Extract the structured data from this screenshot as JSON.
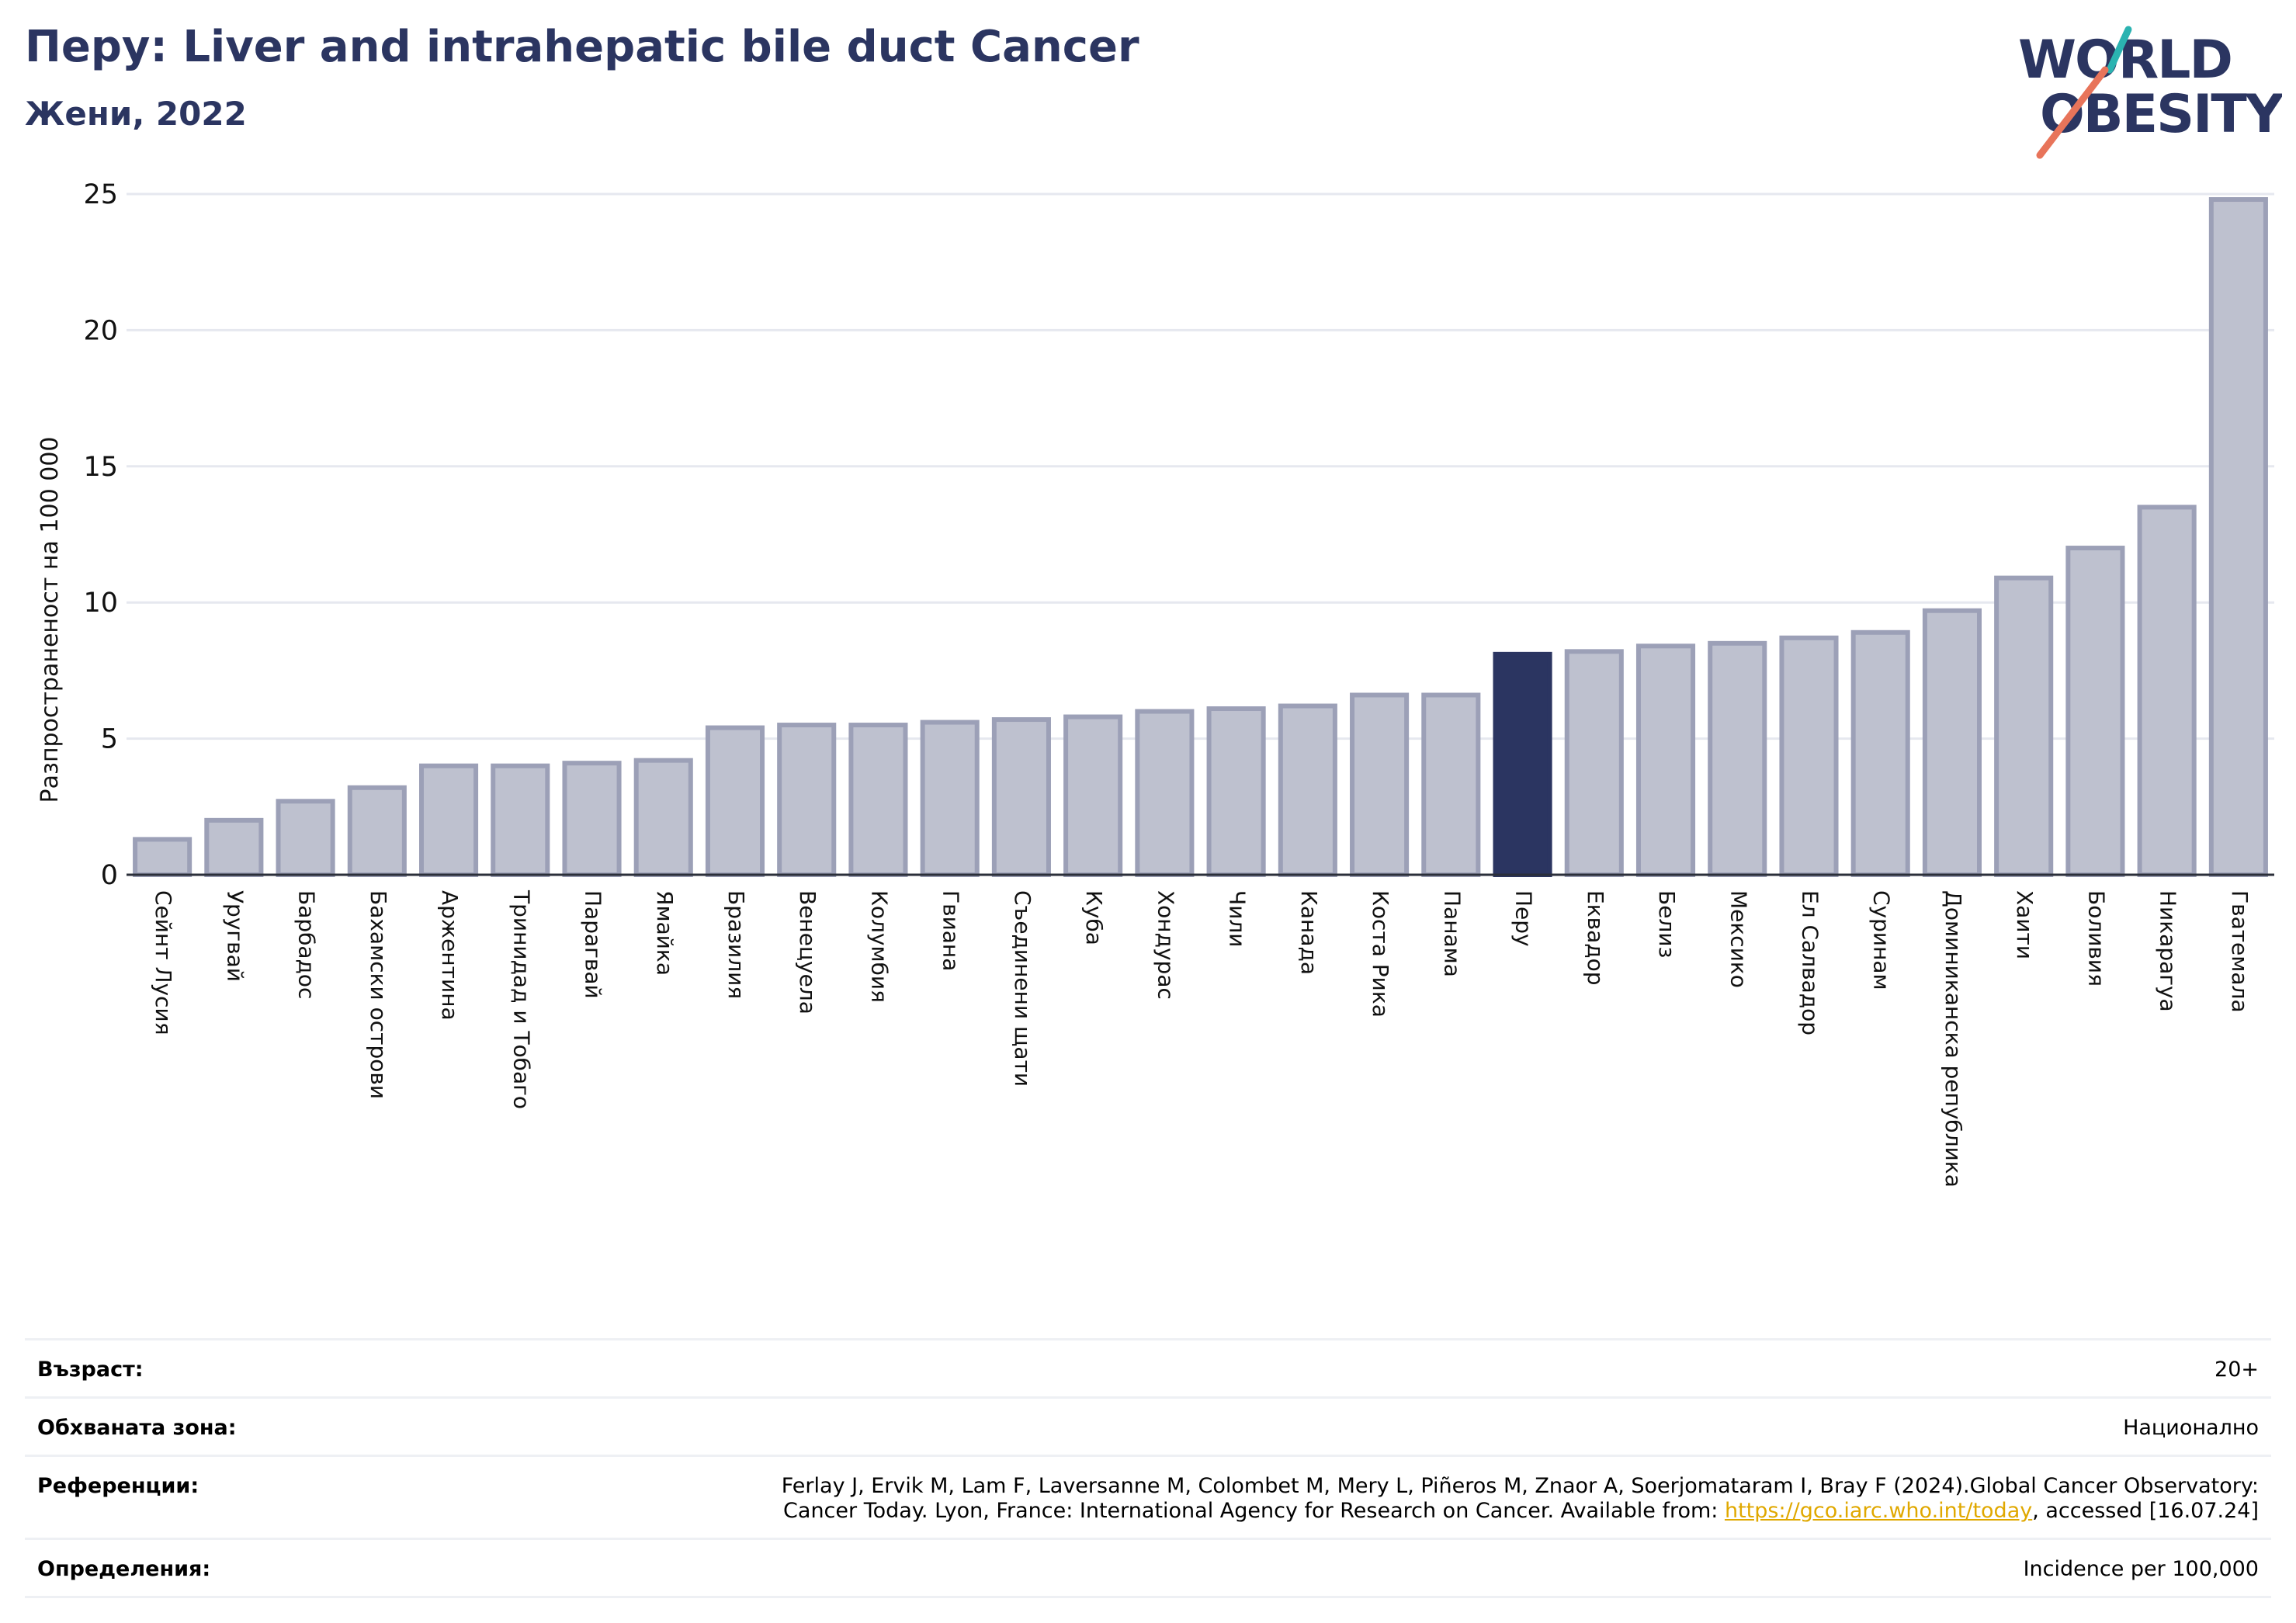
{
  "header": {
    "title": "Перу: Liver and intrahepatic bile duct Cancer",
    "subtitle": "Жени, 2022"
  },
  "logo": {
    "line1": "WORLD",
    "line2": "OBESITY"
  },
  "chart_data": {
    "type": "bar",
    "ylabel": "Разпространеност  на 100 000",
    "ylim": [
      0,
      25
    ],
    "yticks": [
      0,
      5,
      10,
      15,
      20,
      25
    ],
    "grid": true,
    "highlight": "Перу",
    "highlight_color": "#2b3561",
    "bar_color": "#bec1cf",
    "bar_edge_color": "#9ca0b7",
    "categories": [
      "Сейнт Лусия",
      "Уругвай",
      "Барбадос",
      "Бахамски острови",
      "Аржентина",
      "Тринидад и Тобаго",
      "Парагвай",
      "Ямайка",
      "Бразилия",
      "Венецуела",
      "Колумбия",
      "Гвиана",
      "Съединени щати",
      "Куба",
      "Хондурас",
      "Чили",
      "Канада",
      "Коста Рика",
      "Панама",
      "Перу",
      "Еквадор",
      "Белиз",
      "Мексико",
      "Ел Салвадор",
      "Суринам",
      "Доминиканска република",
      "Хаити",
      "Боливия",
      "Никарагуа",
      "Гватемала"
    ],
    "values": [
      1.3,
      2.0,
      2.7,
      3.2,
      4.0,
      4.0,
      4.1,
      4.2,
      5.4,
      5.5,
      5.5,
      5.6,
      5.7,
      5.8,
      6.0,
      6.1,
      6.2,
      6.6,
      6.6,
      8.1,
      8.2,
      8.4,
      8.5,
      8.7,
      8.9,
      9.7,
      10.9,
      12.0,
      13.5,
      24.8
    ]
  },
  "info": {
    "age_label": "Възраст:",
    "age_value": "20+",
    "coverage_label": "Обхваната зона:",
    "coverage_value": "Национално",
    "refs_label": "Референции:",
    "refs_line1": "Ferlay J, Ervik M, Lam F, Laversanne M, Colombet M, Mery L, Piñeros M, Znaor A, Soerjomataram I, Bray F (2024).Global Cancer Observatory:",
    "refs_line2_pre": "Cancer Today. Lyon, France: International Agency for Research on Cancer. Available from: ",
    "refs_link": "https://gco.iarc.who.int/today",
    "refs_line2_post": ", accessed [16.07.24]",
    "defs_label": "Определения:",
    "defs_value": "Incidence per 100,000"
  }
}
